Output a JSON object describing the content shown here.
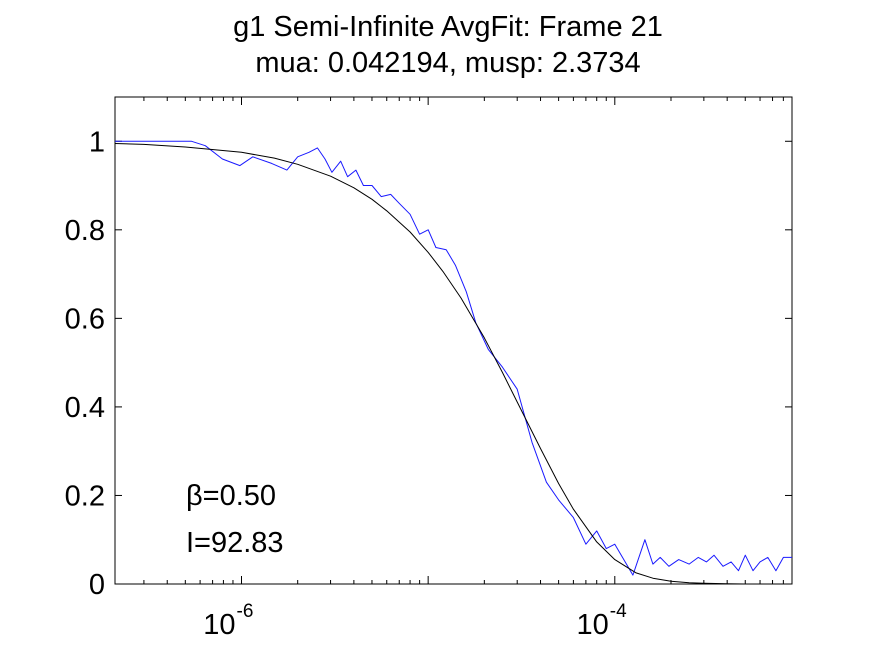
{
  "chart_data": {
    "type": "line",
    "title": "g1 Semi-Infinite AvgFit: Frame 21",
    "subtitle": "mua: 0.042194, musp: 2.3734",
    "xscale": "log",
    "xlim": [
      2.1e-07,
      0.00089
    ],
    "ylim": [
      0,
      1.1
    ],
    "grid": false,
    "x_ticks": [
      {
        "base": "10",
        "exponent": "-6",
        "value": 1e-06
      },
      {
        "base": "10",
        "exponent": "-4",
        "value": 0.0001
      }
    ],
    "y_ticks": [
      {
        "label": "0",
        "value": 0
      },
      {
        "label": "0.2",
        "value": 0.2
      },
      {
        "label": "0.4",
        "value": 0.4
      },
      {
        "label": "0.6",
        "value": 0.6
      },
      {
        "label": "0.8",
        "value": 0.8
      },
      {
        "label": "1",
        "value": 1
      }
    ],
    "annotations": {
      "beta": "β=0.50",
      "intensity": "I=92.83"
    },
    "series": [
      {
        "color": "#1a1aff",
        "x": [
          2.1e-07,
          5.4e-07,
          6.4e-07,
          7.9e-07,
          9.8e-07,
          1.15e-06,
          1.45e-06,
          1.75e-06,
          2e-06,
          2.3e-06,
          2.55e-06,
          2.8e-06,
          3.05e-06,
          3.4e-06,
          3.7e-06,
          4.1e-06,
          4.5e-06,
          5e-06,
          5.6e-06,
          6.3e-06,
          7e-06,
          8e-06,
          9e-06,
          1e-05,
          1.1e-05,
          1.25e-05,
          1.4e-05,
          1.6e-05,
          1.8e-05,
          2.1e-05,
          2.5e-05,
          3e-05,
          3.6e-05,
          4.3e-05,
          5e-05,
          6e-05,
          7e-05,
          8e-05,
          9e-05,
          0.0001,
          0.00011,
          0.000125,
          0.000145,
          0.00016,
          0.000175,
          0.000195,
          0.00022,
          0.00025,
          0.00028,
          0.00031,
          0.00034,
          0.00038,
          0.00042,
          0.00046,
          0.0005,
          0.00055,
          0.0006,
          0.00066,
          0.00073,
          0.0008,
          0.00089
        ],
        "y": [
          1.0,
          1.0,
          0.99,
          0.96,
          0.945,
          0.965,
          0.95,
          0.935,
          0.965,
          0.975,
          0.985,
          0.96,
          0.93,
          0.955,
          0.92,
          0.935,
          0.9,
          0.9,
          0.875,
          0.88,
          0.86,
          0.835,
          0.79,
          0.8,
          0.76,
          0.755,
          0.72,
          0.66,
          0.59,
          0.53,
          0.49,
          0.44,
          0.32,
          0.23,
          0.19,
          0.15,
          0.09,
          0.12,
          0.08,
          0.09,
          0.06,
          0.02,
          0.1,
          0.045,
          0.06,
          0.04,
          0.055,
          0.045,
          0.06,
          0.05,
          0.065,
          0.04,
          0.05,
          0.03,
          0.065,
          0.03,
          0.05,
          0.06,
          0.03,
          0.06,
          0.06
        ]
      },
      {
        "color": "#000000",
        "x": [
          2.1e-07,
          3e-07,
          5e-07,
          1e-06,
          1.5e-06,
          2e-06,
          3e-06,
          4e-06,
          5e-06,
          6e-06,
          8e-06,
          1e-05,
          1.2e-05,
          1.5e-05,
          2e-05,
          2.5e-05,
          3e-05,
          4e-05,
          5e-05,
          6e-05,
          8e-05,
          0.0001,
          0.00013,
          0.00016,
          0.0002,
          0.00025,
          0.0003,
          0.0004,
          0.0005,
          0.0006,
          0.0007,
          0.00089
        ],
        "y": [
          0.995,
          0.993,
          0.987,
          0.975,
          0.962,
          0.948,
          0.921,
          0.895,
          0.869,
          0.843,
          0.795,
          0.749,
          0.706,
          0.646,
          0.556,
          0.478,
          0.411,
          0.306,
          0.227,
          0.169,
          0.095,
          0.055,
          0.025,
          0.013,
          0.006,
          0.003,
          0.0015,
          0.0004,
          0.0001,
          0.0,
          0.0,
          0.0
        ]
      }
    ]
  }
}
